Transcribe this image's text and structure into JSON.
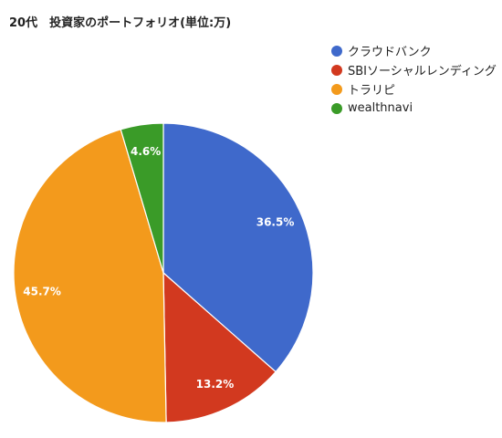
{
  "chart_data": {
    "type": "pie",
    "title": "20代　投資家のポートフォリオ(単位:万)",
    "legend_position": "right",
    "slices": [
      {
        "name": "クラウドバンク",
        "value": 36.5,
        "label": "36.5%",
        "color": "#3f69cb"
      },
      {
        "name": "SBIソーシャルレンディング",
        "value": 13.2,
        "label": "13.2%",
        "color": "#d2391f"
      },
      {
        "name": "トラリピ",
        "value": 45.7,
        "label": "45.7%",
        "color": "#f39a1c"
      },
      {
        "name": "wealthnavi",
        "value": 4.6,
        "label": "4.6%",
        "color": "#3a9b28"
      }
    ]
  }
}
